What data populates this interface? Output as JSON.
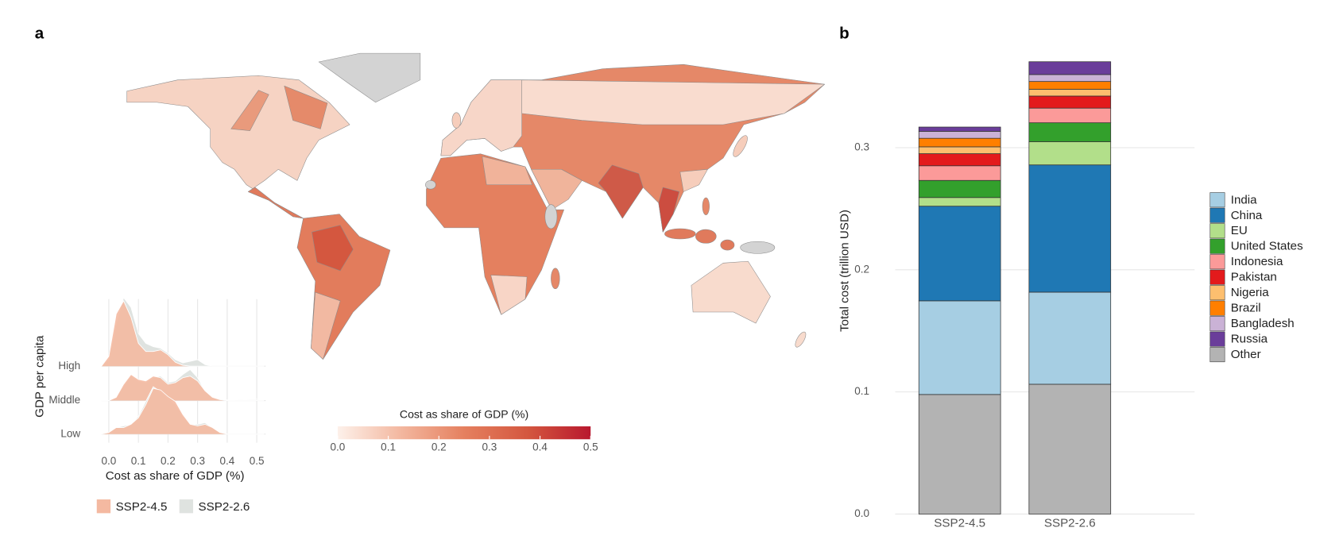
{
  "chart_data": [
    {
      "type": "map",
      "panel": "a",
      "colorbar": {
        "title": "Cost as share of GDP (%)",
        "lim": [
          0,
          0.5
        ],
        "ticks": [
          {
            "value": 0,
            "label": "0.0"
          },
          0.1,
          0.2,
          0.3,
          0.4,
          0.5
        ],
        "colors": [
          "#fdf1ea",
          "#f3b79f",
          "#e5805f",
          "#d4573f",
          "#b8182e"
        ]
      }
    },
    {
      "type": "ridgeline",
      "xlabel": "Cost as share of GDP (%)",
      "ylabel": "GDP per capita",
      "categories": [
        "High",
        "Middle",
        "Low"
      ],
      "xlim": [
        -0.025,
        0.53
      ],
      "xticks": [
        {
          "value": 0,
          "label": "0.0"
        },
        0.1,
        0.2,
        0.3,
        0.4,
        0.5
      ],
      "grid": true,
      "x": [
        -0.025,
        0,
        0.025,
        0.05,
        0.075,
        0.1,
        0.125,
        0.15,
        0.175,
        0.2,
        0.225,
        0.25,
        0.275,
        0.3,
        0.325,
        0.35,
        0.375,
        0.4,
        0.425,
        0.45,
        0.475,
        0.5,
        0.525
      ],
      "series": [
        {
          "name": "SSP2-4.5",
          "color": "#f4b9a1",
          "values": [
            [
              0,
              0.3,
              1.6,
              2.0,
              1.5,
              0.7,
              0.45,
              0.45,
              0.5,
              0.35,
              0.12,
              0.03,
              0,
              0,
              0,
              0,
              0,
              0,
              0,
              0,
              0,
              0,
              0
            ],
            [
              0,
              0,
              0.1,
              0.5,
              0.8,
              0.65,
              0.6,
              0.75,
              0.7,
              0.5,
              0.55,
              0.7,
              0.75,
              0.6,
              0.3,
              0.1,
              0.03,
              0,
              0,
              0,
              0,
              0,
              0
            ],
            [
              0,
              0.05,
              0.2,
              0.2,
              0.3,
              0.5,
              0.9,
              1.4,
              1.35,
              1.15,
              1.0,
              0.6,
              0.3,
              0.25,
              0.3,
              0.2,
              0.05,
              0,
              0,
              0,
              0,
              0,
              0
            ]
          ]
        },
        {
          "name": "SSP2-2.6",
          "color": "#dfe3e0",
          "values": [
            [
              0,
              0.2,
              1.3,
              2.1,
              1.8,
              1.0,
              0.7,
              0.6,
              0.55,
              0.4,
              0.2,
              0.1,
              0.15,
              0.2,
              0.05,
              0,
              0,
              0,
              0,
              0,
              0,
              0,
              0
            ],
            [
              0,
              0,
              0.1,
              0.45,
              0.75,
              0.6,
              0.55,
              0.7,
              0.75,
              0.55,
              0.6,
              0.8,
              0.95,
              0.7,
              0.3,
              0.12,
              0.05,
              0.02,
              0.02,
              0.03,
              0.04,
              0.04,
              0.03
            ],
            [
              0,
              0.05,
              0.2,
              0.25,
              0.3,
              0.55,
              1.0,
              1.45,
              1.3,
              1.1,
              0.9,
              0.55,
              0.3,
              0.3,
              0.35,
              0.2,
              0.05,
              0,
              0,
              0,
              0,
              0,
              0
            ]
          ]
        }
      ]
    },
    {
      "type": "stacked_bar",
      "panel": "b",
      "ylabel": "Total cost (trillion USD)",
      "categories": [
        "SSP2-4.5",
        "SSP2-2.6"
      ],
      "ylim": [
        0,
        0.378
      ],
      "yticks": [
        {
          "value": 0,
          "label": "0.0"
        },
        0.1,
        0.2,
        0.3
      ],
      "grid": true,
      "series": [
        {
          "name": "India",
          "color": "#a6cee3",
          "values": [
            0.0767,
            0.0754
          ]
        },
        {
          "name": "China",
          "color": "#1f78b4",
          "values": [
            0.0775,
            0.1042
          ]
        },
        {
          "name": "EU",
          "color": "#b2df8a",
          "values": [
            0.0071,
            0.019
          ]
        },
        {
          "name": "United States",
          "color": "#33a02c",
          "values": [
            0.014,
            0.0155
          ]
        },
        {
          "name": "Indonesia",
          "color": "#fb9a99",
          "values": [
            0.012,
            0.012
          ]
        },
        {
          "name": "Pakistan",
          "color": "#e31a1c",
          "values": [
            0.0099,
            0.0099
          ]
        },
        {
          "name": "Nigeria",
          "color": "#fdbf6f",
          "values": [
            0.0056,
            0.0056
          ]
        },
        {
          "name": "Brazil",
          "color": "#ff7f00",
          "values": [
            0.007,
            0.0063
          ]
        },
        {
          "name": "Bangladesh",
          "color": "#cab2d6",
          "values": [
            0.0057,
            0.0057
          ]
        },
        {
          "name": "Russia",
          "color": "#6a3d9a",
          "values": [
            0.0035,
            0.0105
          ]
        },
        {
          "name": "Other",
          "color": "#b3b3b3",
          "values": [
            0.0979,
            0.1063
          ]
        }
      ]
    }
  ]
}
